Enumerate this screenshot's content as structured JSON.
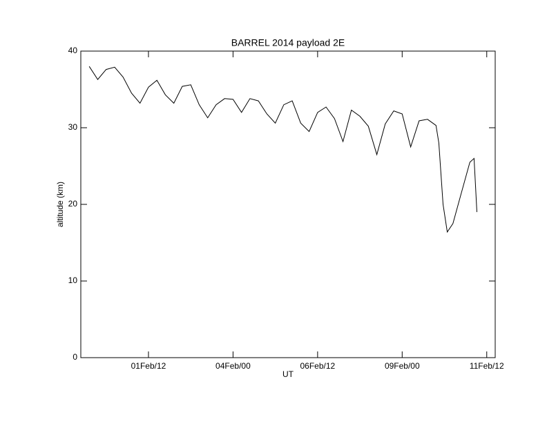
{
  "chart_data": {
    "type": "line",
    "title": "BARREL 2014 payload 2E",
    "xlabel": "UT",
    "ylabel": "altitude (km)",
    "x": [
      "30Jan/18",
      "31Jan/00",
      "31Jan/06",
      "31Jan/12",
      "31Jan/18",
      "01Feb/00",
      "01Feb/06",
      "01Feb/12",
      "01Feb/18",
      "02Feb/00",
      "02Feb/06",
      "02Feb/12",
      "02Feb/18",
      "03Feb/00",
      "03Feb/06",
      "03Feb/12",
      "03Feb/18",
      "04Feb/00",
      "04Feb/06",
      "04Feb/12",
      "04Feb/18",
      "05Feb/00",
      "05Feb/06",
      "05Feb/12",
      "05Feb/18",
      "06Feb/00",
      "06Feb/06",
      "06Feb/12",
      "06Feb/18",
      "07Feb/00",
      "07Feb/06",
      "07Feb/12",
      "07Feb/18",
      "08Feb/00",
      "08Feb/06",
      "08Feb/12",
      "08Feb/18",
      "09Feb/00",
      "09Feb/06",
      "09Feb/12",
      "09Feb/18",
      "10Feb/00",
      "10Feb/02",
      "10Feb/05",
      "10Feb/08",
      "10Feb/12",
      "10Feb/18",
      "11Feb/00",
      "11Feb/03",
      "11Feb/05"
    ],
    "series": [
      {
        "name": "altitude",
        "color": "#000000",
        "values": [
          38.0,
          36.3,
          37.6,
          37.9,
          36.6,
          34.5,
          33.2,
          35.3,
          36.2,
          34.3,
          33.2,
          35.4,
          35.6,
          33.0,
          31.3,
          33.0,
          33.8,
          33.7,
          32.0,
          33.8,
          33.5,
          31.8,
          30.6,
          33.0,
          33.5,
          30.6,
          29.5,
          32.0,
          32.7,
          31.2,
          28.2,
          32.3,
          31.5,
          30.2,
          26.5,
          30.5,
          32.2,
          31.8,
          27.5,
          30.9,
          31.1,
          30.3,
          28.0,
          20.0,
          16.4,
          17.5,
          21.5,
          25.5,
          26.0,
          19.0
        ]
      }
    ],
    "xlim": [
      "30Jan/12",
      "11Feb/18"
    ],
    "xticks": [
      "01Feb/12",
      "04Feb/00",
      "06Feb/12",
      "09Feb/00",
      "11Feb/12"
    ],
    "ylim": [
      0,
      40
    ],
    "yticks": [
      0,
      10,
      20,
      30,
      40
    ],
    "grid": false
  }
}
